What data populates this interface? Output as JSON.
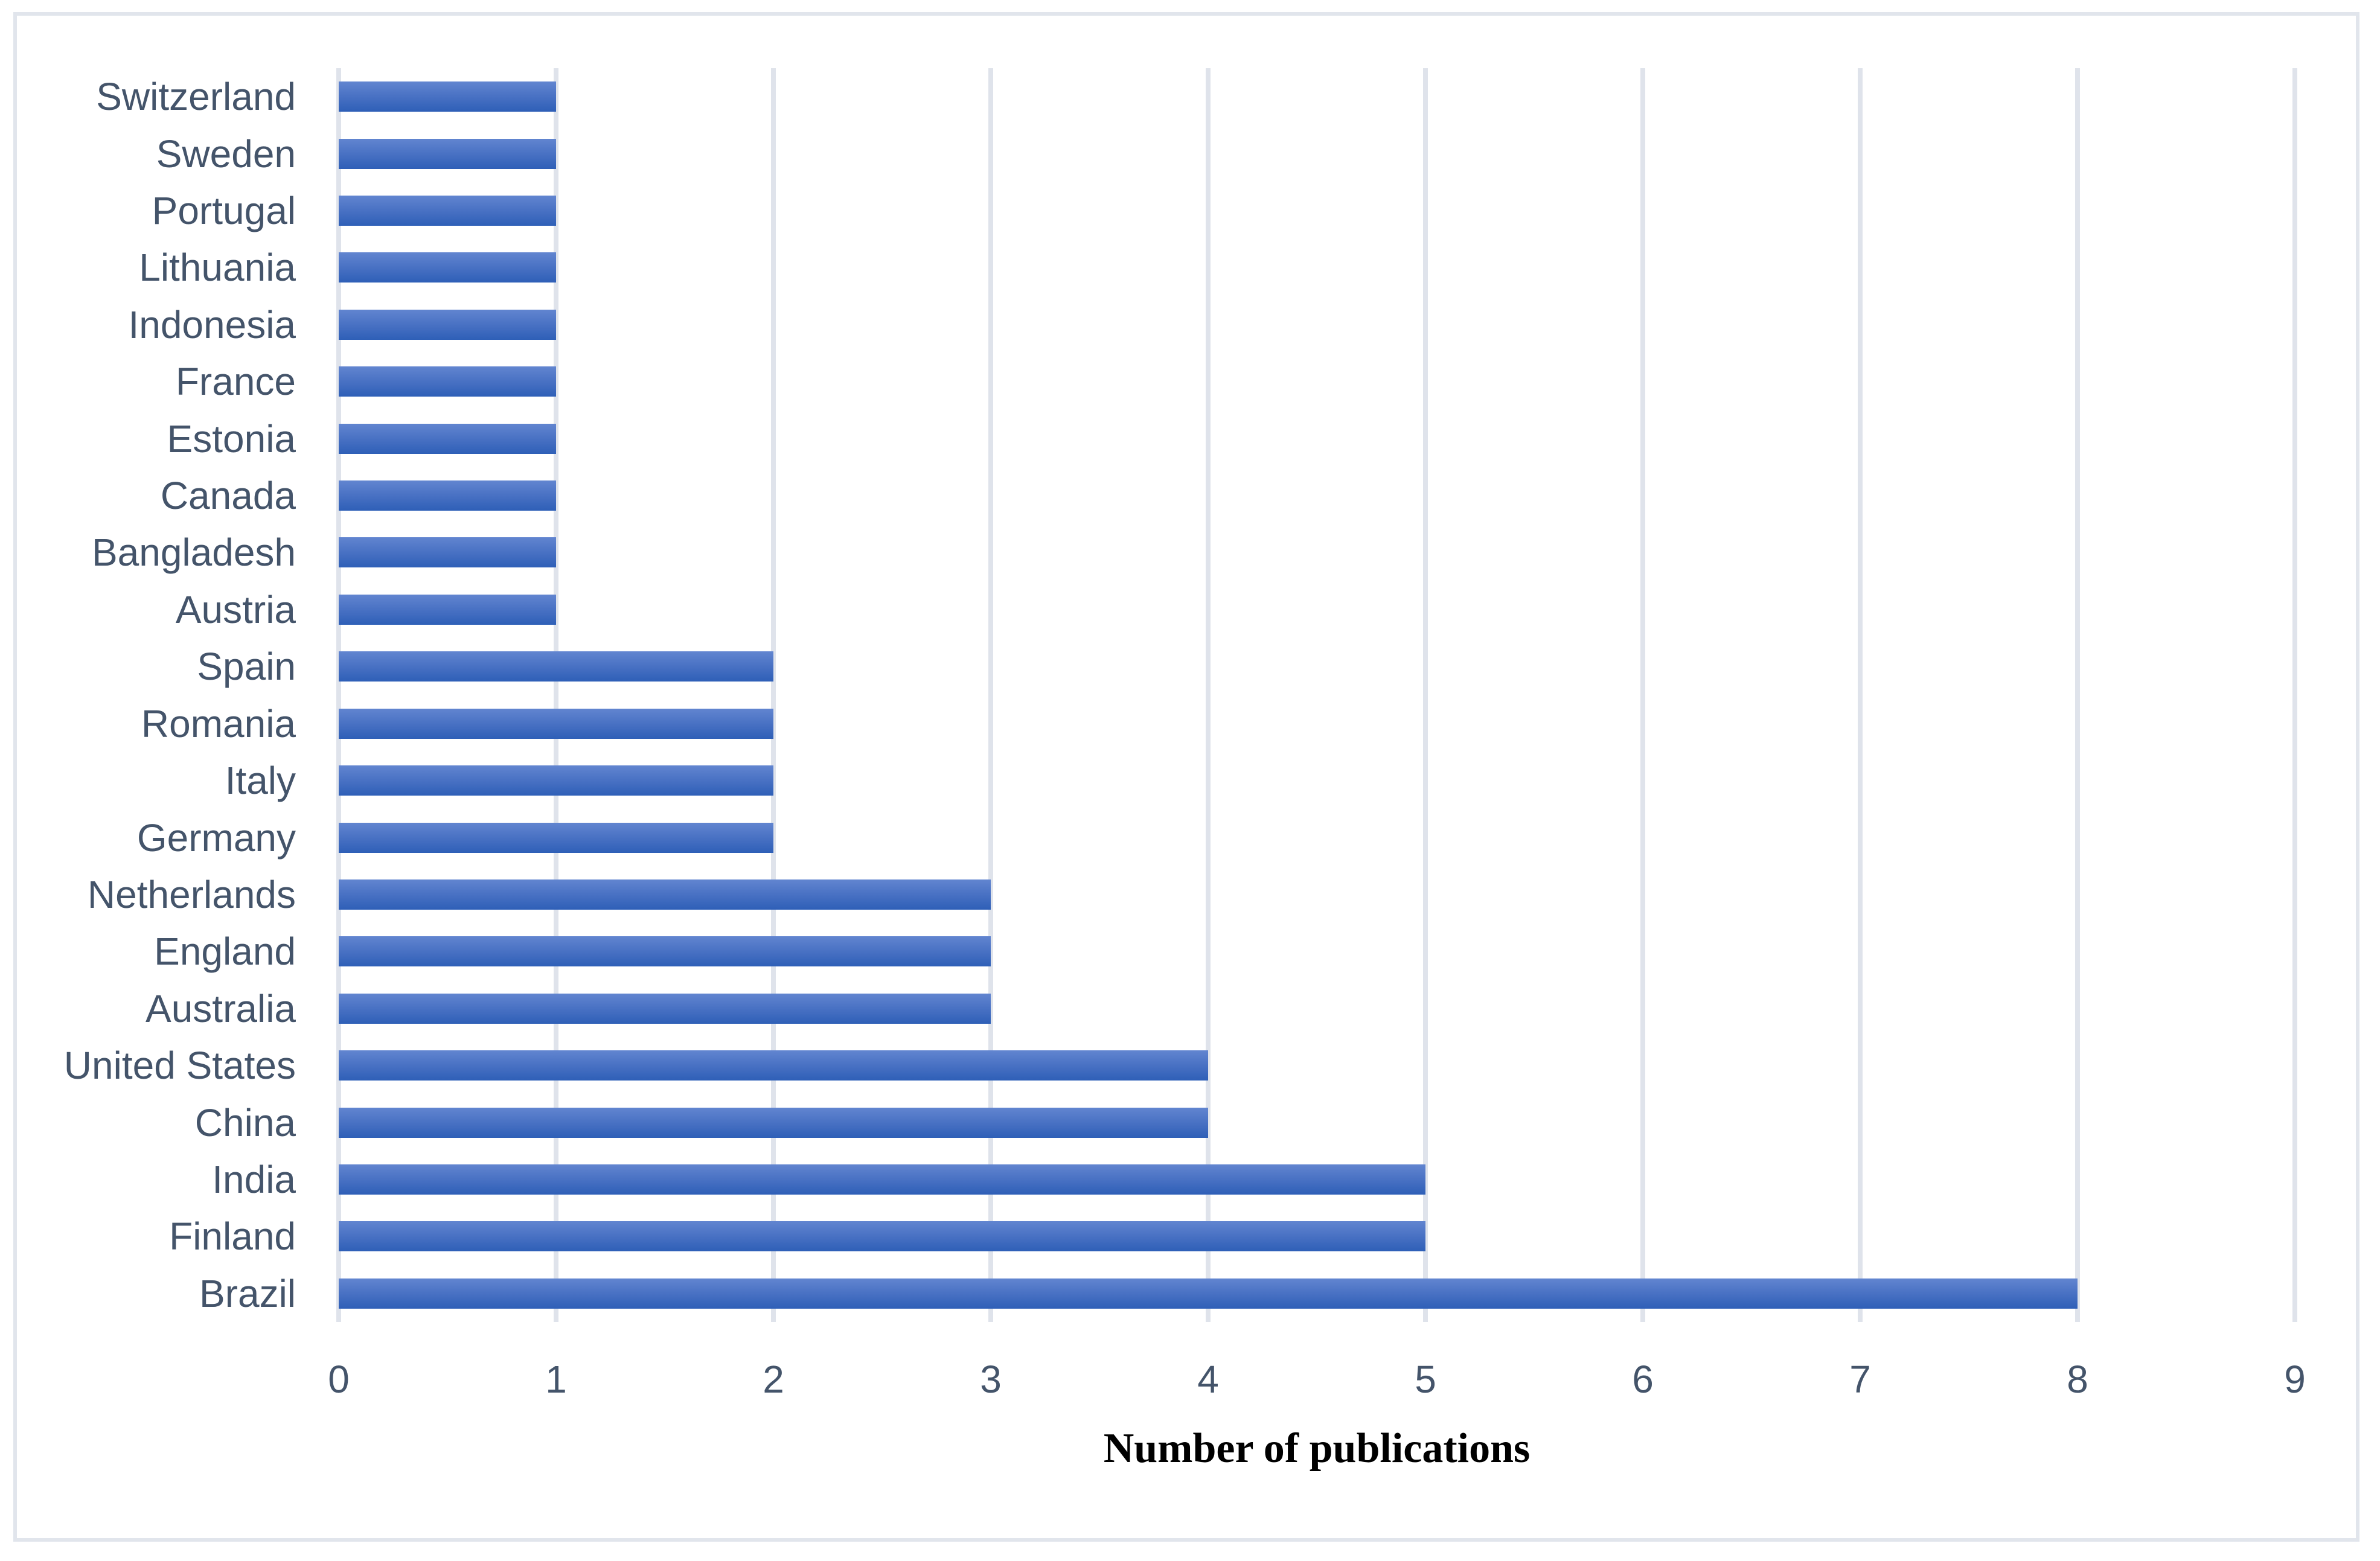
{
  "figure": {
    "background": "#ffffff",
    "border_color": "#e1e5ec"
  },
  "chart_data": {
    "type": "bar",
    "orientation": "horizontal",
    "title": "",
    "xlabel": "Number of publications",
    "ylabel": "",
    "categories": [
      "Switzerland",
      "Sweden",
      "Portugal",
      "Lithuania",
      "Indonesia",
      "France",
      "Estonia",
      "Canada",
      "Bangladesh",
      "Austria",
      "Spain",
      "Romania",
      "Italy",
      "Germany",
      "Netherlands",
      "England",
      "Australia",
      "United States",
      "China",
      "India",
      "Finland",
      "Brazil"
    ],
    "values": [
      1,
      1,
      1,
      1,
      1,
      1,
      1,
      1,
      1,
      1,
      2,
      2,
      2,
      2,
      3,
      3,
      3,
      4,
      4,
      5,
      5,
      8
    ],
    "xlim": [
      0,
      9
    ],
    "xticks": [
      0,
      1,
      2,
      3,
      4,
      5,
      6,
      7,
      8,
      9
    ],
    "grid": "vertical",
    "legend": "none",
    "colors": {
      "bar_top": "#6285d0",
      "bar_bottom": "#2e5fb7",
      "gridline": "#dfe3eb",
      "tick_label": "#44546a",
      "category_label": "#44546a",
      "axis_title": "#000000"
    }
  }
}
